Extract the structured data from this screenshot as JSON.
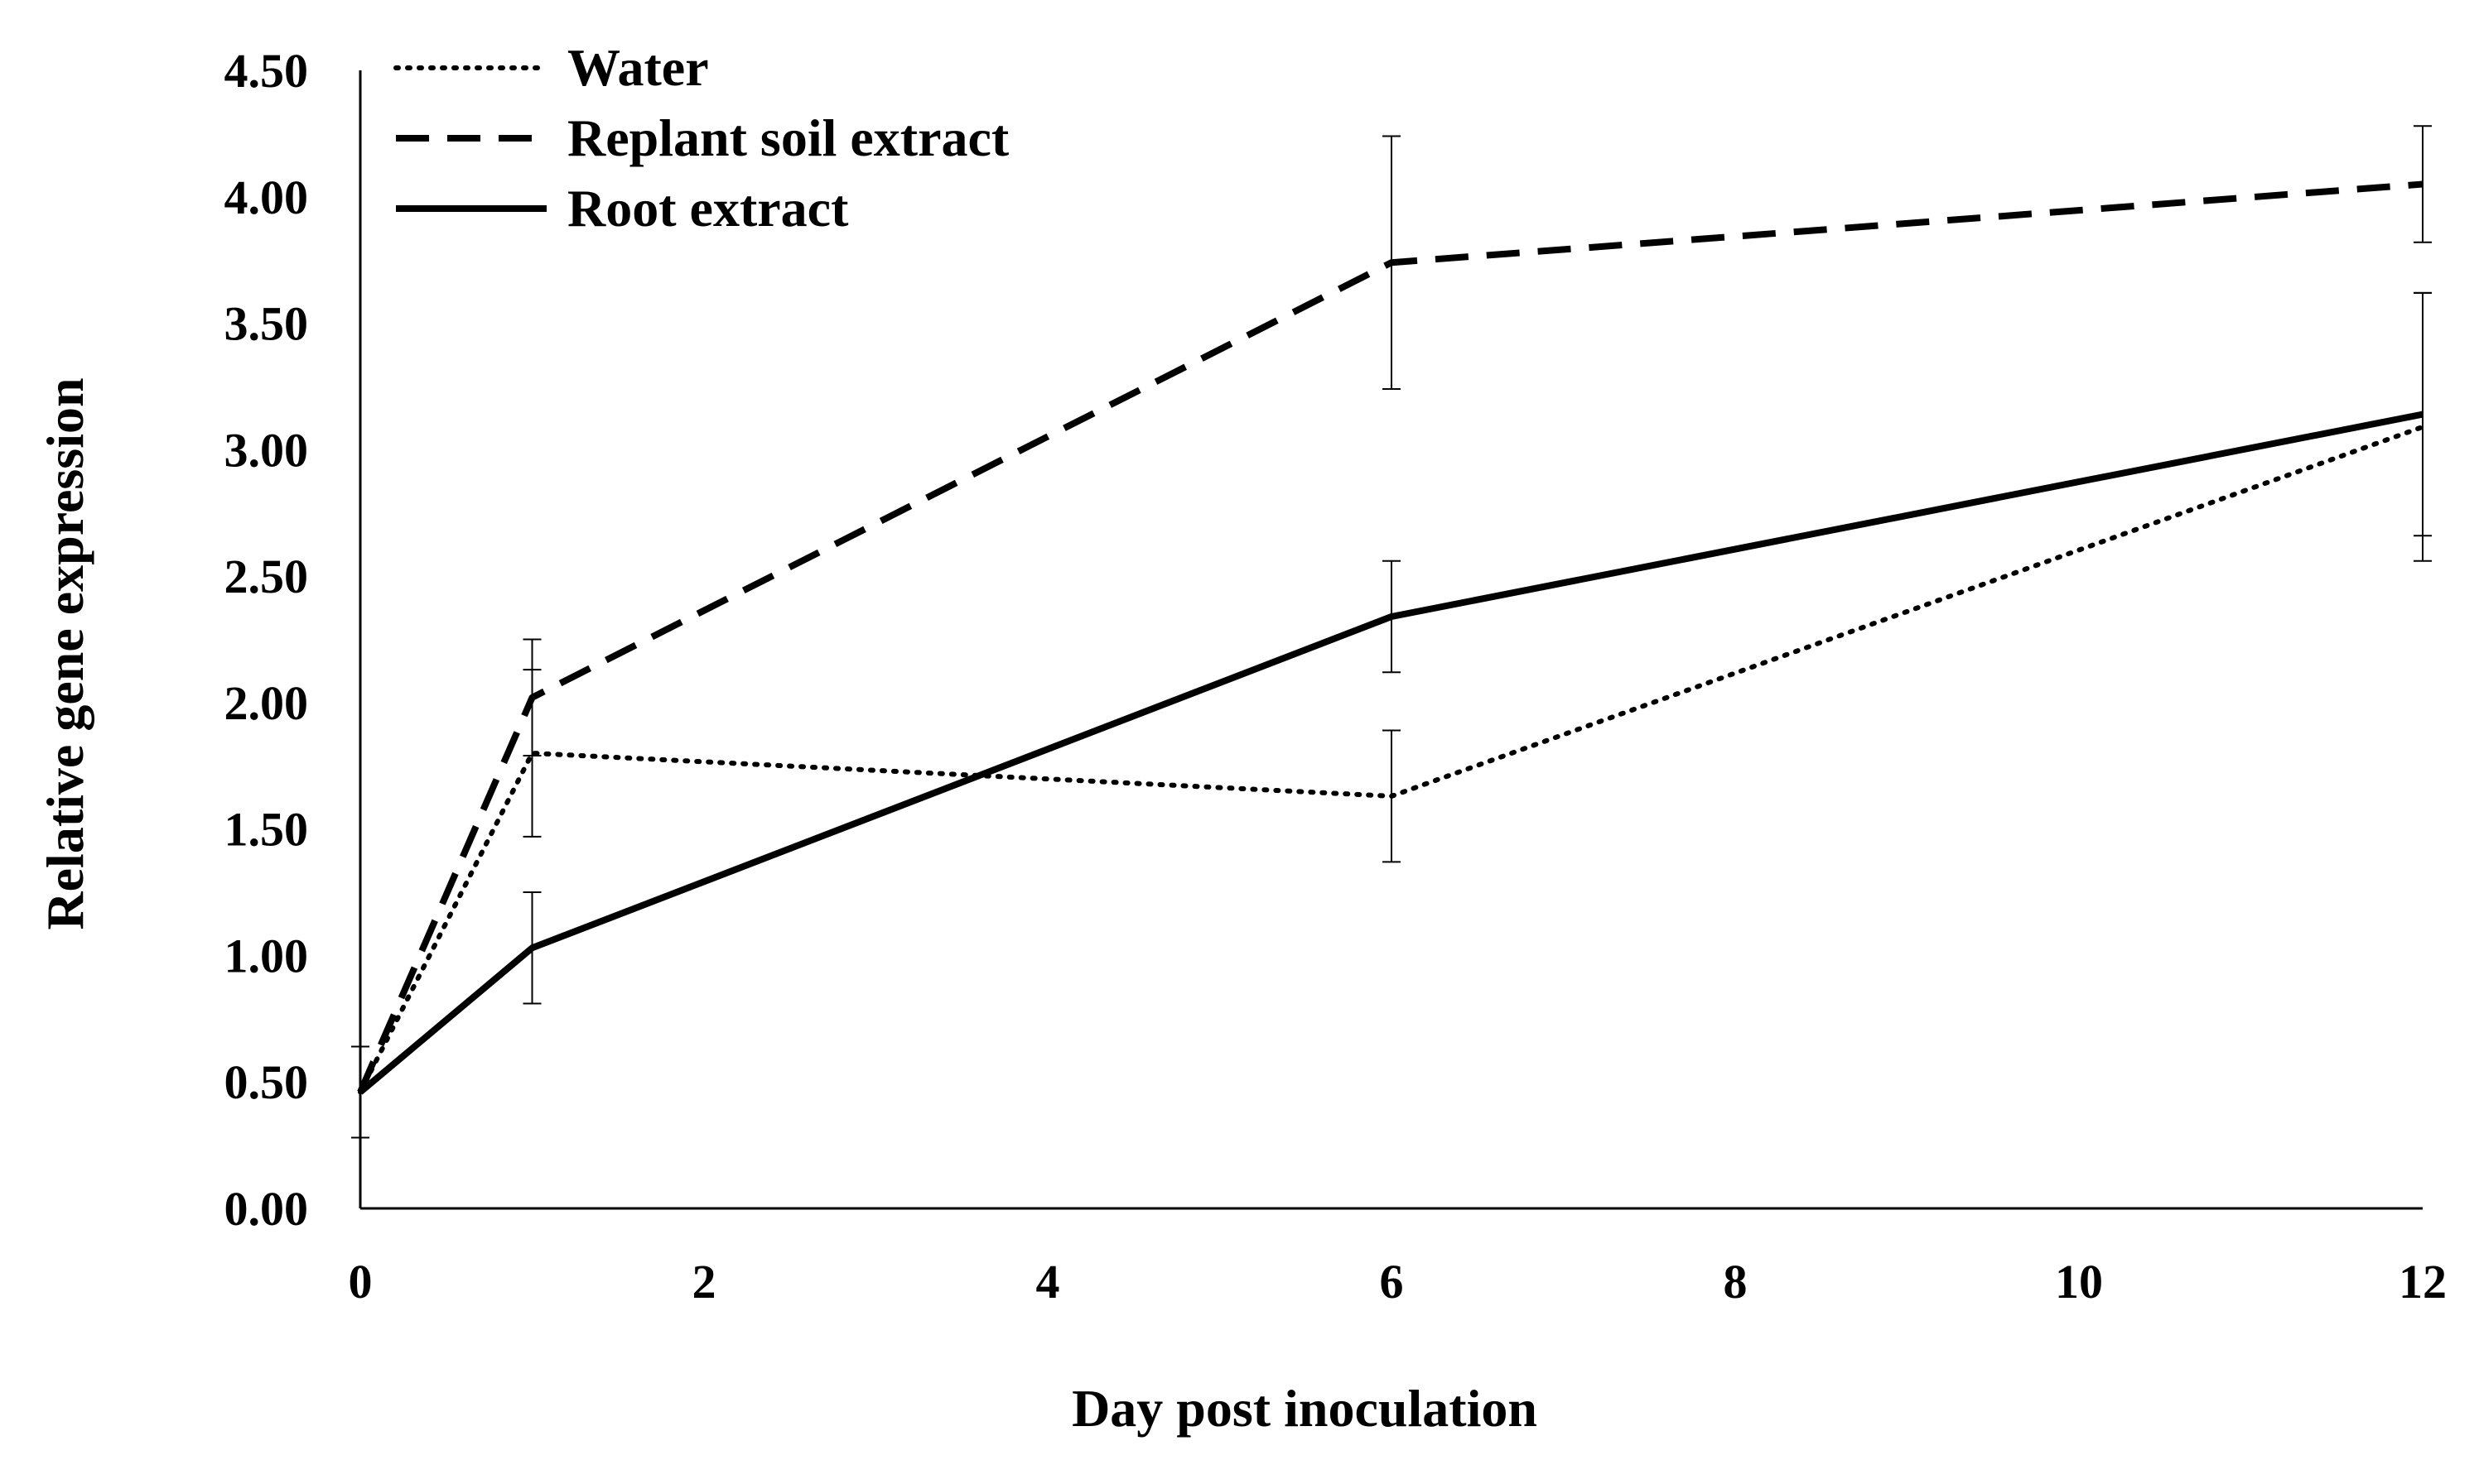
{
  "chart_data": {
    "type": "line",
    "title": "",
    "xlabel": "Day post inoculation",
    "ylabel": "Relative gene expression",
    "xlim": [
      0,
      12
    ],
    "ylim": [
      0,
      4.5
    ],
    "xticks": [
      0,
      2,
      4,
      6,
      8,
      10,
      12
    ],
    "xtick_labels": [
      "0",
      "2",
      "4",
      "6",
      "8",
      "10",
      "12"
    ],
    "yticks": [
      0,
      0.5,
      1,
      1.5,
      2,
      2.5,
      3,
      3.5,
      4,
      4.5
    ],
    "ytick_labels": [
      "0.00",
      "0.50",
      "1.00",
      "1.50",
      "2.00",
      "2.50",
      "3.00",
      "3.50",
      "4.00",
      "4.50"
    ],
    "grid": false,
    "legend_position": "top-left",
    "series": [
      {
        "name": "Water",
        "style": "dotted",
        "color": "#000000",
        "x": [
          0,
          1,
          6,
          12
        ],
        "y": [
          0.46,
          1.8,
          1.63,
          3.09
        ],
        "error": [
          0.18,
          0.33,
          0.26,
          0.53
        ]
      },
      {
        "name": "Replant soil extract",
        "style": "dashed",
        "color": "#000000",
        "x": [
          0,
          1,
          6,
          12
        ],
        "y": [
          0.46,
          2.02,
          3.74,
          4.05
        ],
        "error": [
          0.18,
          0.23,
          0.5,
          0.23
        ]
      },
      {
        "name": "Root extract",
        "style": "solid",
        "color": "#000000",
        "x": [
          0,
          1,
          6,
          12
        ],
        "y": [
          0.46,
          1.03,
          2.34,
          3.14
        ],
        "error": [
          0.18,
          0.22,
          0.22,
          0.48
        ]
      }
    ]
  }
}
